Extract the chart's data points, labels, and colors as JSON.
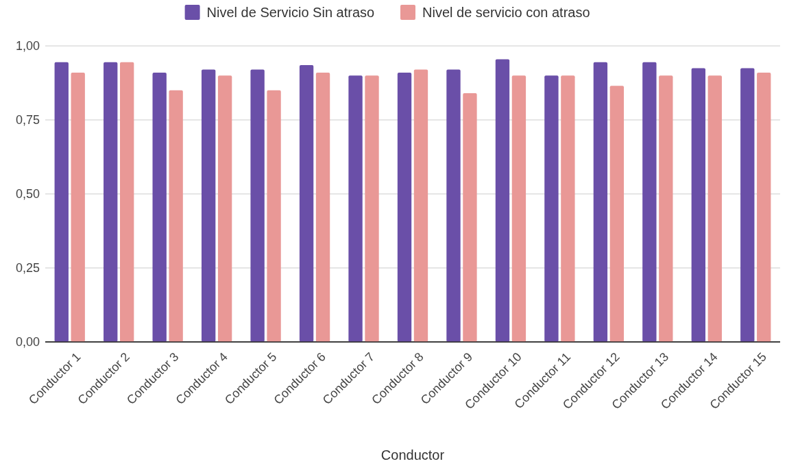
{
  "chart_data": {
    "type": "bar",
    "xlabel": "Conductor",
    "categories": [
      "Conductor 1",
      "Conductor 2",
      "Conductor 3",
      "Conductor 4",
      "Conductor 5",
      "Conductor 6",
      "Conductor 7",
      "Conductor 8",
      "Conductor 9",
      "Conductor 10",
      "Conductor 11",
      "Conductor 12",
      "Conductor 13",
      "Conductor 14",
      "Conductor 15"
    ],
    "series": [
      {
        "name": "Nivel de Servicio Sin atraso",
        "color": "#6a4fa8",
        "values": [
          0.945,
          0.945,
          0.91,
          0.92,
          0.92,
          0.935,
          0.9,
          0.91,
          0.92,
          0.955,
          0.9,
          0.945,
          0.945,
          0.925,
          0.925
        ]
      },
      {
        "name": "Nivel de servicio con atraso",
        "color": "#e99896",
        "values": [
          0.91,
          0.945,
          0.85,
          0.9,
          0.85,
          0.91,
          0.9,
          0.92,
          0.84,
          0.9,
          0.9,
          0.865,
          0.9,
          0.9,
          0.91
        ]
      }
    ],
    "ylim": [
      0,
      1
    ],
    "yticks": [
      {
        "value": 0,
        "label": "0,00"
      },
      {
        "value": 0.25,
        "label": "0,25"
      },
      {
        "value": 0.5,
        "label": "0,50"
      },
      {
        "value": 0.75,
        "label": "0,75"
      },
      {
        "value": 1,
        "label": "1,00"
      }
    ],
    "grid": "y",
    "legend": "top"
  }
}
